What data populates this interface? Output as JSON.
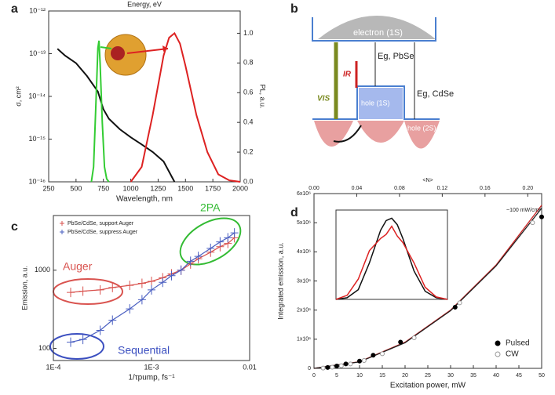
{
  "panel_labels": [
    "a",
    "b",
    "c",
    "d"
  ],
  "diagram": {
    "electron": "electron (1S)",
    "hole1": "hole (1S)",
    "hole2": "hole (2S)",
    "eg_pbse": "Eg, PbSe",
    "eg_cdse": "Eg, CdSe",
    "ir": "IR",
    "vis": "VIS"
  },
  "chart_data": [
    {
      "type": "line",
      "title": "Energy, eV",
      "xlabel": "Wavelength, nm",
      "ylabel": "σ, cm²",
      "y2label": "PL, a.u.",
      "xlim": [
        250,
        2000
      ],
      "xticks": [
        250,
        500,
        750,
        1000,
        1250,
        1500,
        1750,
        2000
      ],
      "ylog": true,
      "ylim": [
        1e-16,
        1e-12
      ],
      "yticks": [
        {
          "value": 1e-16,
          "label": "10⁻¹⁶"
        },
        {
          "value": 1e-15,
          "label": "10⁻¹⁵"
        },
        {
          "value": 1e-14,
          "label": "10⁻¹⁴"
        },
        {
          "value": 1e-13,
          "label": "10⁻¹³"
        },
        {
          "value": 1e-12,
          "label": "10⁻¹²"
        }
      ],
      "y2lim": [
        0,
        1.15
      ],
      "y2ticks": [
        {
          "value": 0,
          "label": "0.0"
        },
        0.2,
        0.4,
        0.6,
        0.8,
        {
          "value": 1,
          "label": "1.0"
        }
      ],
      "series": [
        {
          "color": "#111111",
          "x": [
            330,
            400,
            500,
            600,
            700,
            750,
            800,
            900,
            1000,
            1100,
            1200,
            1300,
            1400
          ],
          "values": [
            1.3e-13,
            9e-14,
            6e-14,
            3e-14,
            1.3e-14,
            5e-15,
            3e-15,
            1.7e-15,
            1.1e-15,
            7.5e-16,
            5e-16,
            3e-16,
            1e-16
          ]
        },
        {
          "color": "#33cc33",
          "axis": "y2",
          "x": [
            640,
            660,
            680,
            700,
            710,
            720,
            740,
            760,
            780,
            800
          ],
          "values": [
            0,
            0.1,
            0.5,
            0.9,
            0.95,
            0.8,
            0.4,
            0.1,
            0.02,
            0
          ]
        },
        {
          "color": "#dd2222",
          "axis": "y2",
          "x": [
            1000,
            1100,
            1200,
            1300,
            1350,
            1400,
            1450,
            1500,
            1600,
            1700,
            1800,
            1900,
            2000
          ],
          "values": [
            0,
            0.1,
            0.45,
            0.85,
            0.97,
            1.0,
            0.93,
            0.78,
            0.45,
            0.2,
            0.05,
            0.01,
            0
          ]
        }
      ]
    },
    {
      "type": "scatter",
      "xlabel": "1/τpump, fs⁻¹",
      "ylabel": "Emission, a.u.",
      "xlog": true,
      "ylog": true,
      "xlim": [
        0.0001,
        0.01
      ],
      "ylim": [
        70,
        5000
      ],
      "xticks": [
        {
          "value": 0.0001,
          "label": "1E-4"
        },
        {
          "value": 0.001,
          "label": "1E-3"
        },
        0.01
      ],
      "yticks": [
        100,
        1000
      ],
      "series": [
        {
          "name": "PbSe/CdSe, support Auger",
          "color": "#d9534f",
          "x": [
            0.00015,
            0.0002,
            0.0003,
            0.0004,
            0.0006,
            0.0008,
            0.001,
            0.0013,
            0.0016,
            0.002,
            0.0025,
            0.003,
            0.004,
            0.005,
            0.006,
            0.007
          ],
          "values": [
            520,
            540,
            560,
            600,
            640,
            680,
            720,
            800,
            900,
            1000,
            1200,
            1400,
            1700,
            2000,
            2200,
            2600
          ]
        },
        {
          "name": "PbSe/CdSe, suppress Auger",
          "color": "#4a5fc1",
          "x": [
            0.00015,
            0.0002,
            0.0003,
            0.0004,
            0.0006,
            0.0008,
            0.001,
            0.0013,
            0.0016,
            0.002,
            0.0025,
            0.003,
            0.004,
            0.005,
            0.006,
            0.007
          ],
          "values": [
            120,
            130,
            170,
            230,
            320,
            420,
            560,
            700,
            850,
            1000,
            1300,
            1500,
            1900,
            2300,
            2600,
            3000
          ]
        }
      ],
      "annotations": [
        {
          "text": "Auger",
          "color": "#d9534f"
        },
        {
          "text": "Sequential",
          "color": "#3b4fc0"
        },
        {
          "text": "2PA",
          "color": "#33bb33"
        }
      ]
    },
    {
      "type": "scatter",
      "xlabel": "Excitation power, mW",
      "ylabel": "Integrated emission, a.u.",
      "x2label": "<N>",
      "xlim": [
        0,
        50
      ],
      "xticks": [
        0,
        5,
        10,
        15,
        20,
        25,
        30,
        35,
        40,
        45,
        50
      ],
      "x2lim": [
        0,
        0.213
      ],
      "x2ticks": [
        {
          "value": 0,
          "label": "0.00"
        },
        {
          "value": 0.04,
          "label": "0.04"
        },
        {
          "value": 0.08,
          "label": "0.08"
        },
        {
          "value": 0.12,
          "label": "0.12"
        },
        {
          "value": 0.16,
          "label": "0.16"
        },
        {
          "value": 0.2,
          "label": "0.20"
        }
      ],
      "ylim": [
        0,
        6000000
      ],
      "yticks": [
        0,
        {
          "value": 1000000,
          "label": "1x10⁶"
        },
        {
          "value": 2000000,
          "label": "2x10⁶"
        },
        {
          "value": 3000000,
          "label": "3x10⁶"
        },
        {
          "value": 4000000,
          "label": "4x10⁶"
        },
        {
          "value": 5000000,
          "label": "5x10⁶"
        },
        {
          "value": 6000000,
          "label": "6x10⁶"
        }
      ],
      "series": [
        {
          "name": "Pulsed",
          "color": "#000000",
          "x": [
            3,
            5,
            7,
            10,
            13,
            19,
            31,
            50
          ],
          "values": [
            30000,
            80000,
            150000,
            250000,
            450000,
            900000,
            2100000,
            5200000
          ]
        },
        {
          "name": "CW",
          "color": "#999999",
          "x": [
            2,
            4,
            6,
            8,
            11,
            15,
            22,
            32,
            48
          ],
          "values": [
            10000,
            40000,
            90000,
            150000,
            270000,
            500000,
            1050000,
            2250000,
            5000000
          ]
        }
      ],
      "curves": [
        {
          "color": "#cc2222",
          "x": [
            0,
            10,
            20,
            30,
            40,
            50
          ],
          "values": [
            0,
            230000,
            900000,
            2000000,
            3550000,
            5600000
          ]
        },
        {
          "color": "#222222",
          "x": [
            0,
            10,
            20,
            30,
            40,
            50
          ],
          "values": [
            0,
            220000,
            880000,
            1980000,
            3520000,
            5500000
          ]
        }
      ],
      "annotation": "~100 mW/cm²",
      "inset": {
        "xlim": [
          0,
          10
        ],
        "ylim": [
          0,
          1.1
        ],
        "x": [
          0,
          1,
          2,
          3,
          4,
          4.5,
          5,
          5.5,
          6,
          7,
          8,
          9,
          10
        ],
        "series": [
          {
            "color": "#111111",
            "values": [
              0,
              0.02,
              0.12,
              0.45,
              0.85,
              0.97,
              1.0,
              0.92,
              0.75,
              0.35,
              0.1,
              0.02,
              0
            ]
          },
          {
            "color": "#dd2222",
            "values": [
              0,
              0.05,
              0.25,
              0.6,
              0.75,
              0.8,
              0.9,
              0.78,
              0.7,
              0.45,
              0.15,
              0.03,
              0
            ]
          }
        ]
      }
    }
  ]
}
